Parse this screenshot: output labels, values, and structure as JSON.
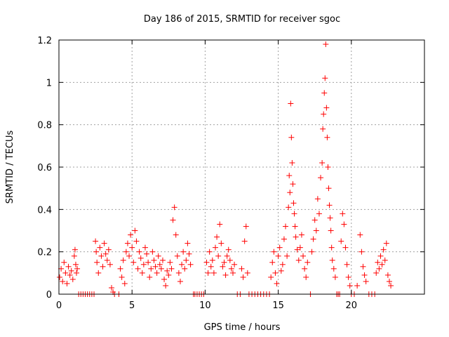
{
  "chart_data": {
    "type": "scatter",
    "title": "Day 186 of 2015, SRMTID for receiver sgoc",
    "xlabel": "GPS time / hours",
    "ylabel": "SRMTID / TECUs",
    "xlim": [
      0,
      25
    ],
    "ylim": [
      0,
      1.2
    ],
    "xticks": [
      0,
      5,
      10,
      15,
      20
    ],
    "xtick_labels": [
      "0",
      "5",
      "10",
      "15",
      "20"
    ],
    "yticks": [
      0,
      0.2,
      0.4,
      0.6,
      0.8,
      1.0,
      1.2
    ],
    "ytick_labels": [
      "0",
      "0.2",
      "0.4",
      "0.6",
      "0.8",
      "1",
      "1.2"
    ],
    "grid": true,
    "marker": "+",
    "series": [
      {
        "name": "SRMTID",
        "color": "#ff0000",
        "x": [
          0.05,
          0.15,
          0.25,
          0.35,
          0.45,
          0.55,
          0.65,
          0.75,
          0.85,
          0.95,
          1.05,
          1.1,
          1.15,
          1.2,
          1.25,
          1.35,
          1.5,
          1.65,
          1.8,
          1.95,
          2.1,
          2.25,
          2.4,
          2.5,
          2.55,
          2.6,
          2.7,
          2.8,
          2.9,
          3.0,
          3.1,
          3.2,
          3.3,
          3.4,
          3.5,
          3.6,
          3.7,
          3.8,
          4.1,
          4.2,
          4.3,
          4.4,
          4.5,
          4.6,
          4.7,
          4.8,
          4.9,
          5.0,
          5.1,
          5.2,
          5.3,
          5.4,
          5.5,
          5.6,
          5.7,
          5.8,
          5.9,
          6.0,
          6.1,
          6.2,
          6.3,
          6.4,
          6.5,
          6.6,
          6.7,
          6.8,
          6.9,
          7.0,
          7.1,
          7.2,
          7.3,
          7.4,
          7.5,
          7.6,
          7.7,
          7.8,
          7.9,
          8.0,
          8.1,
          8.2,
          8.3,
          8.4,
          8.5,
          8.6,
          8.7,
          8.8,
          8.9,
          9.0,
          9.2,
          9.3,
          9.45,
          9.6,
          9.75,
          9.9,
          10.1,
          10.2,
          10.3,
          10.4,
          10.5,
          10.6,
          10.7,
          10.8,
          10.9,
          11.0,
          11.1,
          11.2,
          11.3,
          11.4,
          11.5,
          11.6,
          11.7,
          11.8,
          11.9,
          12.0,
          12.2,
          12.4,
          12.5,
          12.6,
          12.7,
          12.8,
          12.9,
          13.0,
          13.2,
          13.4,
          13.6,
          13.8,
          14.0,
          14.2,
          14.4,
          14.5,
          14.6,
          14.7,
          14.8,
          14.9,
          15.0,
          15.1,
          15.2,
          15.3,
          15.4,
          15.5,
          15.6,
          15.7,
          15.75,
          15.8,
          15.85,
          15.9,
          15.95,
          16.0,
          16.05,
          16.1,
          16.15,
          16.2,
          16.3,
          16.4,
          16.5,
          16.6,
          16.7,
          16.8,
          16.9,
          17.0,
          17.2,
          17.3,
          17.4,
          17.5,
          17.6,
          17.7,
          17.8,
          17.9,
          18.0,
          18.05,
          18.1,
          18.15,
          18.2,
          18.25,
          18.3,
          18.35,
          18.4,
          18.45,
          18.5,
          18.55,
          18.6,
          18.65,
          18.7,
          18.8,
          18.9,
          19.0,
          19.1,
          19.2,
          19.3,
          19.4,
          19.5,
          19.6,
          19.7,
          19.8,
          19.9,
          20.0,
          20.2,
          20.4,
          20.6,
          20.7,
          20.8,
          20.9,
          21.0,
          21.2,
          21.4,
          21.6,
          21.7,
          21.8,
          21.9,
          22.0,
          22.1,
          22.2,
          22.3,
          22.4,
          22.5,
          22.6,
          22.7
        ],
        "y": [
          0.08,
          0.12,
          0.06,
          0.15,
          0.1,
          0.05,
          0.13,
          0.09,
          0.11,
          0.07,
          0.18,
          0.21,
          0.14,
          0.1,
          0.12,
          0.0,
          0.0,
          0.0,
          0.0,
          0.0,
          0.0,
          0.0,
          0.0,
          0.25,
          0.2,
          0.15,
          0.1,
          0.22,
          0.18,
          0.13,
          0.24,
          0.19,
          0.16,
          0.21,
          0.14,
          0.03,
          0.01,
          0.0,
          0.0,
          0.12,
          0.08,
          0.16,
          0.05,
          0.2,
          0.24,
          0.18,
          0.28,
          0.22,
          0.15,
          0.3,
          0.25,
          0.12,
          0.2,
          0.17,
          0.1,
          0.14,
          0.22,
          0.19,
          0.15,
          0.08,
          0.12,
          0.2,
          0.16,
          0.13,
          0.1,
          0.18,
          0.14,
          0.12,
          0.16,
          0.07,
          0.04,
          0.11,
          0.09,
          0.15,
          0.12,
          0.35,
          0.41,
          0.28,
          0.18,
          0.1,
          0.06,
          0.14,
          0.2,
          0.12,
          0.16,
          0.24,
          0.19,
          0.14,
          0.0,
          0.0,
          0.0,
          0.0,
          0.0,
          0.0,
          0.15,
          0.1,
          0.2,
          0.13,
          0.16,
          0.1,
          0.22,
          0.27,
          0.18,
          0.33,
          0.24,
          0.13,
          0.15,
          0.09,
          0.18,
          0.21,
          0.16,
          0.12,
          0.1,
          0.14,
          0.0,
          0.0,
          0.12,
          0.08,
          0.25,
          0.32,
          0.1,
          0.0,
          0.0,
          0.0,
          0.0,
          0.0,
          0.0,
          0.0,
          0.0,
          0.08,
          0.15,
          0.2,
          0.1,
          0.05,
          0.18,
          0.22,
          0.11,
          0.14,
          0.26,
          0.32,
          0.18,
          0.41,
          0.56,
          0.48,
          0.9,
          0.74,
          0.62,
          0.52,
          0.43,
          0.38,
          0.32,
          0.27,
          0.21,
          0.16,
          0.22,
          0.28,
          0.18,
          0.12,
          0.08,
          0.15,
          0.0,
          0.2,
          0.26,
          0.35,
          0.3,
          0.45,
          0.38,
          0.55,
          0.62,
          0.78,
          0.85,
          0.95,
          1.02,
          1.18,
          0.88,
          0.74,
          0.6,
          0.5,
          0.42,
          0.36,
          0.3,
          0.22,
          0.16,
          0.12,
          0.08,
          0.0,
          0.0,
          0.0,
          0.25,
          0.38,
          0.33,
          0.22,
          0.14,
          0.08,
          0.04,
          0.0,
          0.0,
          0.04,
          0.28,
          0.2,
          0.13,
          0.09,
          0.06,
          0.0,
          0.0,
          0.0,
          0.1,
          0.15,
          0.12,
          0.18,
          0.14,
          0.21,
          0.16,
          0.24,
          0.09,
          0.06,
          0.04
        ]
      }
    ]
  }
}
